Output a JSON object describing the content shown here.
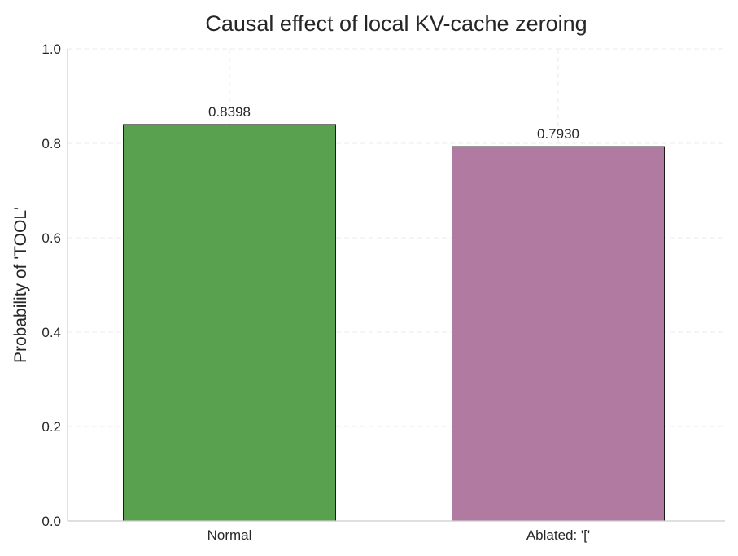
{
  "chart_data": {
    "type": "bar",
    "title": "Causal effect of local KV-cache zeroing",
    "xlabel": "",
    "ylabel": "Probability of 'TOOL'",
    "ylim": [
      0,
      1.0
    ],
    "yticks": [
      "0.0",
      "0.2",
      "0.4",
      "0.6",
      "0.8",
      "1.0"
    ],
    "categories": [
      "Normal",
      "Ablated: '['"
    ],
    "values": [
      0.8398,
      0.793
    ],
    "value_labels": [
      "0.8398",
      "0.7930"
    ],
    "colors": [
      "#59a14f",
      "#b07aa1"
    ],
    "grid": true
  }
}
